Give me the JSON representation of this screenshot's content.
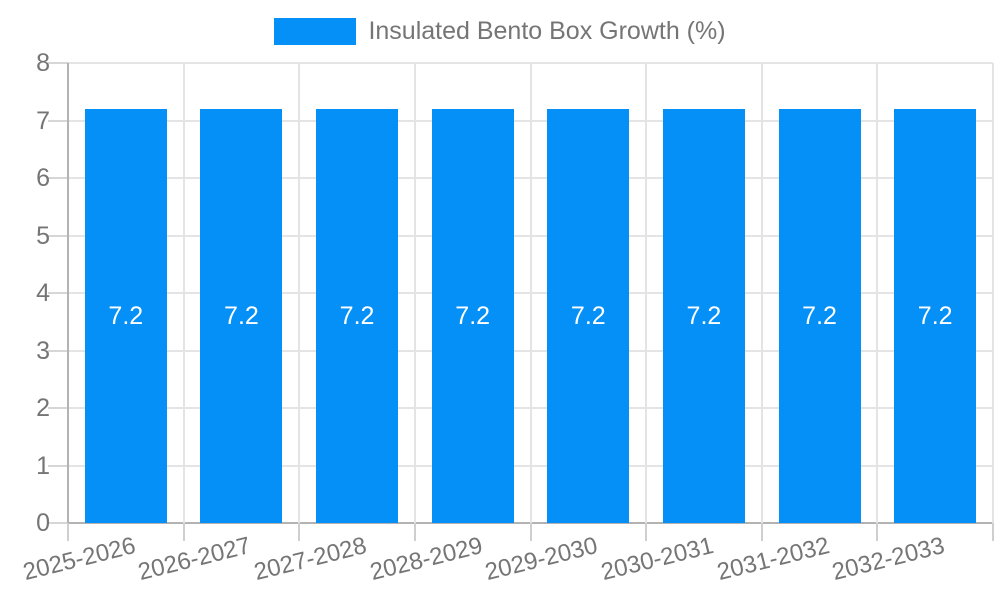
{
  "chart_data": {
    "type": "bar",
    "title": "",
    "legend": {
      "label": "Insulated Bento Box Growth (%)",
      "position": "top"
    },
    "categories": [
      "2025-2026",
      "2026-2027",
      "2027-2028",
      "2028-2029",
      "2029-2030",
      "2030-2031",
      "2031-2032",
      "2032-2033"
    ],
    "series": [
      {
        "name": "Insulated Bento Box Growth (%)",
        "values": [
          7.2,
          7.2,
          7.2,
          7.2,
          7.2,
          7.2,
          7.2,
          7.2
        ],
        "value_labels": [
          "7.2",
          "7.2",
          "7.2",
          "7.2",
          "7.2",
          "7.2",
          "7.2",
          "7.2"
        ]
      }
    ],
    "ylabel": "",
    "xlabel": "",
    "ylim": [
      0,
      8
    ],
    "y_ticks": [
      0,
      1,
      2,
      3,
      4,
      5,
      6,
      7,
      8
    ],
    "grid": true,
    "colors": {
      "bar": "#0590F8",
      "axis_text": "#757575",
      "value_text": "#ffffff",
      "gridline": "#e4e4e4",
      "axis_line": "#b3b3b3",
      "background": "#ffffff"
    }
  }
}
